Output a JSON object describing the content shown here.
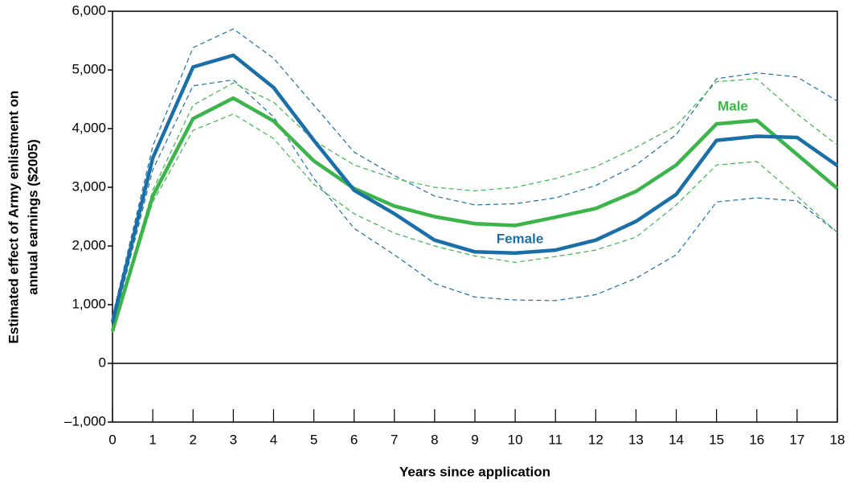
{
  "chart_data": {
    "type": "line",
    "xlabel": "Years since application",
    "ylabel": [
      "Estimated effect of Army enlistment on",
      "annual earnings ($2005)"
    ],
    "x": [
      0,
      1,
      2,
      3,
      4,
      5,
      6,
      7,
      8,
      9,
      10,
      11,
      12,
      13,
      14,
      15,
      16,
      17,
      18
    ],
    "xlim": [
      0,
      18
    ],
    "xticks": [
      0,
      1,
      2,
      3,
      4,
      5,
      6,
      7,
      8,
      9,
      10,
      11,
      12,
      13,
      14,
      15,
      16,
      17,
      18
    ],
    "ylim": [
      -1000,
      6000
    ],
    "yticks": [
      {
        "value": -1000,
        "label": "–1,000"
      },
      0,
      {
        "value": 1000,
        "label": "1,000"
      },
      {
        "value": 2000,
        "label": "2,000"
      },
      {
        "value": 3000,
        "label": "3,000"
      },
      {
        "value": 4000,
        "label": "4,000"
      },
      {
        "value": 5000,
        "label": "5,000"
      },
      {
        "value": 6000,
        "label": "6,000"
      }
    ],
    "series": [
      {
        "color": "#1a6fa8",
        "dashed": true,
        "values": [
          800,
          3700,
          5380,
          5700,
          5200,
          4400,
          3600,
          3200,
          2850,
          2700,
          2720,
          2820,
          3030,
          3380,
          3900,
          4850,
          4950,
          4880,
          4470
        ]
      },
      {
        "color": "#1a6fa8",
        "dashed": true,
        "values": [
          600,
          3300,
          4730,
          4830,
          4200,
          3150,
          2300,
          1850,
          1360,
          1130,
          1080,
          1070,
          1170,
          1450,
          1850,
          2750,
          2820,
          2770,
          2230
        ]
      },
      {
        "color": "#3bb54a",
        "dashed": true,
        "values": [
          580,
          2950,
          4400,
          4780,
          4450,
          3800,
          3380,
          3150,
          3000,
          2940,
          3000,
          3150,
          3350,
          3680,
          4050,
          4800,
          4850,
          4250,
          3720
        ]
      },
      {
        "color": "#3bb54a",
        "dashed": true,
        "values": [
          520,
          2750,
          3970,
          4250,
          3830,
          3050,
          2550,
          2220,
          2000,
          1830,
          1720,
          1820,
          1930,
          2150,
          2700,
          3380,
          3440,
          2850,
          2230
        ]
      },
      {
        "name": "Male",
        "color": "#3bb54a",
        "dashed": false,
        "values": [
          550,
          2850,
          4170,
          4520,
          4130,
          3450,
          2980,
          2680,
          2500,
          2380,
          2350,
          2490,
          2640,
          2930,
          3380,
          4080,
          4140,
          3560,
          2980
        ]
      },
      {
        "name": "Female",
        "color": "#1a6fa8",
        "dashed": false,
        "values": [
          700,
          3500,
          5050,
          5250,
          4700,
          3800,
          2950,
          2550,
          2100,
          1900,
          1880,
          1930,
          2100,
          2420,
          2880,
          3800,
          3870,
          3850,
          3370
        ]
      }
    ]
  }
}
